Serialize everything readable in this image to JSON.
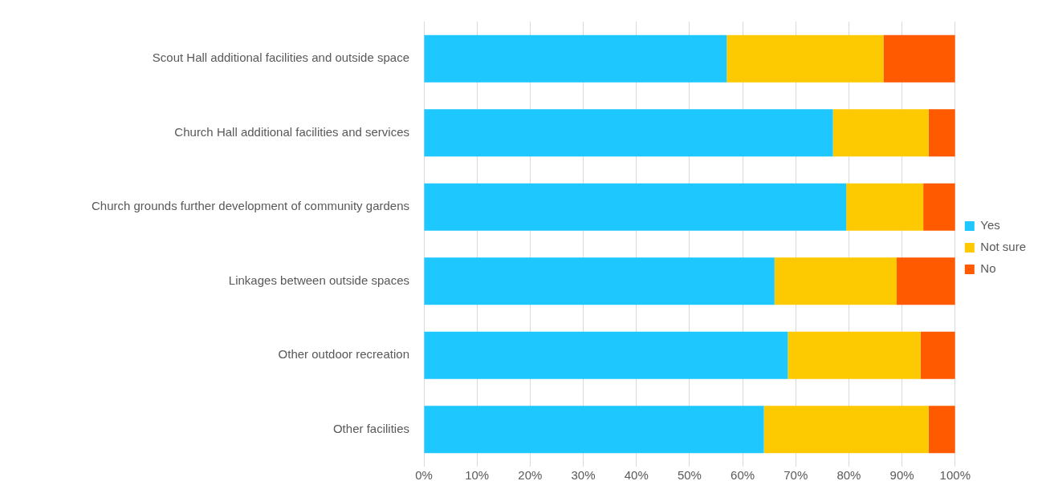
{
  "chart_data": {
    "type": "bar",
    "orientation": "horizontal",
    "stacked": true,
    "categories": [
      "Scout Hall additional facilities and outside space",
      "Church Hall additional facilities and services",
      "Church grounds further development of community gardens",
      "Linkages between outside spaces",
      "Other outdoor recreation",
      "Other facilities"
    ],
    "series": [
      {
        "name": "Yes",
        "color": "#1ec8ff",
        "values": [
          57,
          77,
          79.5,
          66,
          68.5,
          64
        ]
      },
      {
        "name": "Not sure",
        "color": "#fdc900",
        "values": [
          29.5,
          18,
          14.5,
          23,
          25,
          31
        ]
      },
      {
        "name": "No",
        "color": "#ff5a00",
        "values": [
          13.5,
          5,
          6,
          11,
          6.5,
          5
        ]
      }
    ],
    "xlim": [
      0,
      100
    ],
    "xticks": [
      {
        "value": 0,
        "label": "0%"
      },
      {
        "value": 10,
        "label": "10%"
      },
      {
        "value": 20,
        "label": "20%"
      },
      {
        "value": 30,
        "label": "30%"
      },
      {
        "value": 40,
        "label": "40%"
      },
      {
        "value": 50,
        "label": "50%"
      },
      {
        "value": 60,
        "label": "60%"
      },
      {
        "value": 70,
        "label": "70%"
      },
      {
        "value": 80,
        "label": "80%"
      },
      {
        "value": 90,
        "label": "90%"
      },
      {
        "value": 100,
        "label": "100%"
      }
    ],
    "grid": "x",
    "legend": "right"
  }
}
